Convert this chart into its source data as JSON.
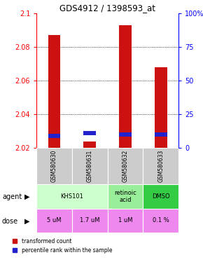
{
  "title": "GDS4912 / 1398593_at",
  "samples": [
    "GSM580630",
    "GSM580631",
    "GSM580632",
    "GSM580633"
  ],
  "red_values": [
    2.087,
    2.024,
    2.093,
    2.068
  ],
  "blue_values": [
    2.027,
    2.029,
    2.028,
    2.028
  ],
  "ymin": 2.02,
  "ymax": 2.1,
  "yticks": [
    2.02,
    2.04,
    2.06,
    2.08,
    2.1
  ],
  "ytick_labels": [
    "2.02",
    "2.04",
    "2.06",
    "2.08",
    "2.1"
  ],
  "y2ticks": [
    0,
    25,
    50,
    75,
    100
  ],
  "y2labels": [
    "0",
    "25",
    "50",
    "75",
    "100%"
  ],
  "agent_info": [
    [
      0,
      2,
      "KHS101",
      "#ccffcc"
    ],
    [
      2,
      1,
      "retinoic\nacid",
      "#99ee99"
    ],
    [
      3,
      1,
      "DMSO",
      "#33cc44"
    ]
  ],
  "doses": [
    "5 uM",
    "1.7 uM",
    "1 uM",
    "0.1 %"
  ],
  "dose_color": "#ee88ee",
  "sample_bg": "#cccccc",
  "bar_width": 0.35,
  "red_color": "#cc1111",
  "blue_color": "#2222cc",
  "legend_red": "transformed count",
  "legend_blue": "percentile rank within the sample",
  "grid_lines": [
    2.04,
    2.06,
    2.08
  ]
}
